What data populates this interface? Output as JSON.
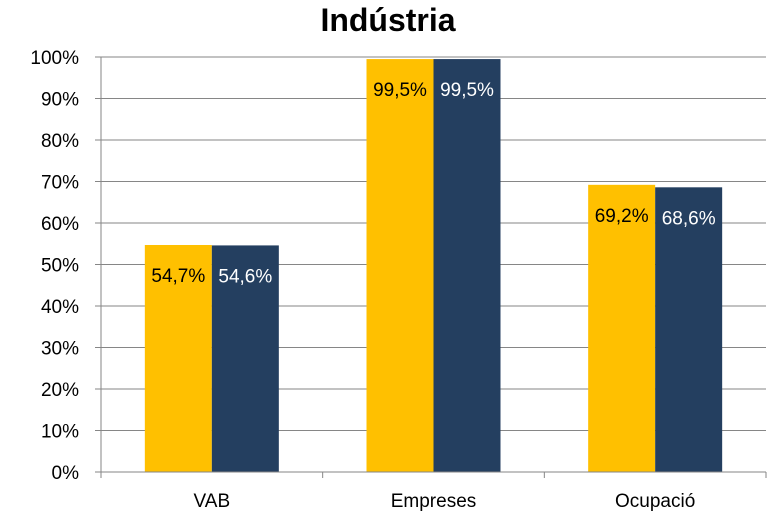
{
  "chart_data": {
    "type": "bar",
    "title": "Indústria",
    "categories": [
      "VAB",
      "Empreses",
      "Ocupació"
    ],
    "series": [
      {
        "values": [
          54.7,
          99.5,
          69.2
        ],
        "labels": [
          "54,7%",
          "99,5%",
          "69,2%"
        ],
        "color": "#FFC000",
        "label_color": "#000000"
      },
      {
        "values": [
          54.6,
          99.5,
          68.6
        ],
        "labels": [
          "54,6%",
          "99,5%",
          "68,6%"
        ],
        "color": "#243F60",
        "label_color": "#FFFFFF"
      }
    ],
    "yticks": [
      "0%",
      "10%",
      "20%",
      "30%",
      "40%",
      "50%",
      "60%",
      "70%",
      "80%",
      "90%",
      "100%"
    ],
    "ylim": [
      0,
      100
    ],
    "grid": true,
    "gridColor": "#868686"
  }
}
